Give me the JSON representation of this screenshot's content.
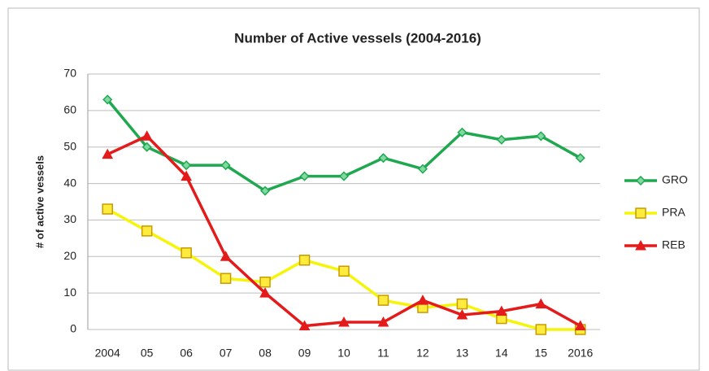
{
  "chart_data": {
    "type": "line",
    "title": "Number of Active vessels (2004-2016)",
    "y_label": "# of active vessels",
    "categories": [
      "2004",
      "05",
      "06",
      "07",
      "08",
      "09",
      "10",
      "11",
      "12",
      "13",
      "14",
      "15",
      "2016"
    ],
    "series": [
      {
        "name": "GRO",
        "color": "#1fa84f",
        "marker": "diamond",
        "values": [
          63,
          50,
          45,
          45,
          38,
          42,
          42,
          47,
          44,
          54,
          52,
          53,
          47
        ]
      },
      {
        "name": "PRA",
        "color": "#f5f50a",
        "marker": "square",
        "values": [
          33,
          27,
          21,
          14,
          13,
          19,
          16,
          8,
          6,
          7,
          3,
          0,
          0
        ]
      },
      {
        "name": "REB",
        "color": "#e41b1b",
        "marker": "triangle",
        "values": [
          48,
          53,
          42,
          20,
          10,
          1,
          2,
          2,
          8,
          4,
          5,
          7,
          1
        ]
      }
    ],
    "ylim": [
      0,
      70
    ],
    "yticks": [
      0,
      10,
      20,
      30,
      40,
      50,
      60,
      70
    ],
    "grid": true,
    "legend": "right"
  }
}
